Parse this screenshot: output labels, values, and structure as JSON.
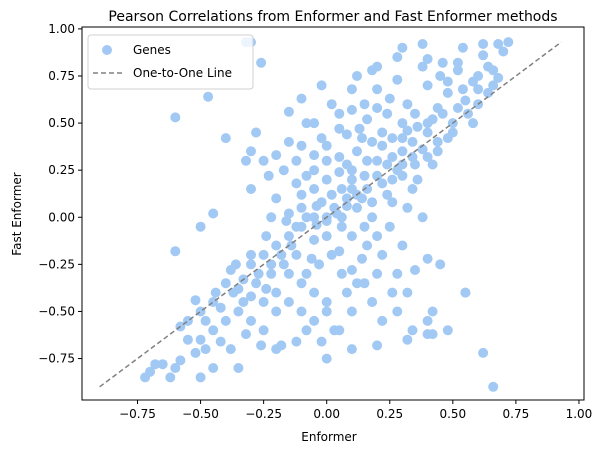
{
  "chart_data": {
    "type": "scatter",
    "title": "Pearson Correlations from Enformer and Fast Enformer methods",
    "xlabel": "Enformer",
    "ylabel": "Fast Enformer",
    "xlim": [
      -0.97,
      1.02
    ],
    "ylim": [
      -0.97,
      1.01
    ],
    "xticks": [
      -0.75,
      -0.5,
      -0.25,
      0.0,
      0.25,
      0.5,
      0.75,
      1.0
    ],
    "xtick_labels": [
      "−0.75",
      "−0.50",
      "−0.25",
      "0.00",
      "0.25",
      "0.50",
      "0.75",
      "1.00"
    ],
    "yticks": [
      -0.75,
      -0.5,
      -0.25,
      0.0,
      0.25,
      0.5,
      0.75,
      1.0
    ],
    "ytick_labels": [
      "−0.75",
      "−0.50",
      "−0.25",
      "0.00",
      "0.25",
      "0.50",
      "0.75",
      "1.00"
    ],
    "grid": false,
    "legend": {
      "placement": "top-left",
      "entries": [
        "Genes",
        "One-to-One Line"
      ]
    },
    "series": [
      {
        "name": "Genes",
        "kind": "scatter",
        "color": "#a1c9f4",
        "points": [
          [
            -0.3,
            0.93
          ],
          [
            -0.26,
            0.82
          ],
          [
            -0.47,
            0.64
          ],
          [
            -0.6,
            0.53
          ],
          [
            0.72,
            0.93
          ],
          [
            0.68,
            0.92
          ],
          [
            0.62,
            0.92
          ],
          [
            0.54,
            0.9
          ],
          [
            0.38,
            0.92
          ],
          [
            0.3,
            0.9
          ],
          [
            0.2,
            0.8
          ],
          [
            0.12,
            0.75
          ],
          [
            0.18,
            0.78
          ],
          [
            0.28,
            0.73
          ],
          [
            0.45,
            0.75
          ],
          [
            0.64,
            0.8
          ],
          [
            0.66,
            0.78
          ],
          [
            0.4,
            0.7
          ],
          [
            0.25,
            0.63
          ],
          [
            0.15,
            0.6
          ],
          [
            0.1,
            0.57
          ],
          [
            0.2,
            0.58
          ],
          [
            0.32,
            0.6
          ],
          [
            0.48,
            0.72
          ],
          [
            0.55,
            0.62
          ],
          [
            0.6,
            0.68
          ],
          [
            0.1,
            0.68
          ],
          [
            0.02,
            0.6
          ],
          [
            -0.1,
            0.63
          ],
          [
            -0.15,
            0.56
          ],
          [
            -0.05,
            0.5
          ],
          [
            0.05,
            0.47
          ],
          [
            0.13,
            0.47
          ],
          [
            0.16,
            0.52
          ],
          [
            0.22,
            0.45
          ],
          [
            0.3,
            0.5
          ],
          [
            0.35,
            0.55
          ],
          [
            0.42,
            0.52
          ],
          [
            0.5,
            0.5
          ],
          [
            0.58,
            0.5
          ],
          [
            0.4,
            0.45
          ],
          [
            -0.4,
            0.42
          ],
          [
            -0.3,
            0.35
          ],
          [
            -0.28,
            0.45
          ],
          [
            -0.32,
            0.3
          ],
          [
            -0.2,
            0.33
          ],
          [
            -0.12,
            0.3
          ],
          [
            -0.17,
            0.25
          ],
          [
            -0.05,
            0.33
          ],
          [
            0.0,
            0.38
          ],
          [
            0.05,
            0.32
          ],
          [
            0.08,
            0.28
          ],
          [
            0.12,
            0.35
          ],
          [
            0.18,
            0.4
          ],
          [
            0.22,
            0.38
          ],
          [
            0.26,
            0.32
          ],
          [
            0.3,
            0.42
          ],
          [
            0.34,
            0.4
          ],
          [
            0.38,
            0.36
          ],
          [
            0.28,
            0.25
          ],
          [
            0.2,
            0.3
          ],
          [
            0.15,
            0.22
          ],
          [
            0.1,
            0.2
          ],
          [
            0.05,
            0.24
          ],
          [
            0.0,
            0.2
          ],
          [
            -0.05,
            0.15
          ],
          [
            -0.08,
            0.22
          ],
          [
            -0.12,
            0.18
          ],
          [
            -0.2,
            0.1
          ],
          [
            -0.23,
            0.22
          ],
          [
            -0.3,
            0.15
          ],
          [
            -0.45,
            0.02
          ],
          [
            -0.5,
            -0.05
          ],
          [
            -0.22,
            0.0
          ],
          [
            -0.15,
            0.02
          ],
          [
            -0.1,
            0.05
          ],
          [
            -0.05,
            0.0
          ],
          [
            0.0,
            -0.02
          ],
          [
            0.03,
            0.05
          ],
          [
            0.08,
            0.1
          ],
          [
            0.12,
            0.12
          ],
          [
            0.16,
            0.15
          ],
          [
            0.22,
            0.18
          ],
          [
            0.26,
            0.2
          ],
          [
            0.3,
            0.22
          ],
          [
            0.35,
            0.28
          ],
          [
            0.4,
            0.32
          ],
          [
            0.44,
            0.35
          ],
          [
            0.34,
            0.15
          ],
          [
            0.32,
            0.05
          ],
          [
            0.38,
            0.0
          ],
          [
            0.26,
            0.08
          ],
          [
            0.18,
            0.0
          ],
          [
            0.15,
            -0.05
          ],
          [
            0.1,
            -0.1
          ],
          [
            0.06,
            -0.05
          ],
          [
            0.0,
            -0.1
          ],
          [
            -0.05,
            -0.12
          ],
          [
            -0.1,
            -0.05
          ],
          [
            -0.15,
            -0.1
          ],
          [
            -0.2,
            -0.15
          ],
          [
            -0.25,
            -0.2
          ],
          [
            -0.3,
            -0.25
          ],
          [
            -0.28,
            -0.35
          ],
          [
            -0.22,
            -0.3
          ],
          [
            -0.17,
            -0.25
          ],
          [
            -0.12,
            -0.2
          ],
          [
            -0.08,
            -0.3
          ],
          [
            -0.03,
            -0.25
          ],
          [
            0.02,
            -0.2
          ],
          [
            0.05,
            -0.18
          ],
          [
            0.1,
            -0.28
          ],
          [
            0.14,
            -0.22
          ],
          [
            0.2,
            -0.1
          ],
          [
            0.25,
            -0.05
          ],
          [
            0.3,
            -0.15
          ],
          [
            0.4,
            -0.22
          ],
          [
            0.45,
            -0.25
          ],
          [
            0.35,
            -0.28
          ],
          [
            0.2,
            -0.3
          ],
          [
            0.15,
            -0.35
          ],
          [
            0.08,
            -0.4
          ],
          [
            0.0,
            -0.45
          ],
          [
            -0.05,
            -0.4
          ],
          [
            -0.1,
            -0.35
          ],
          [
            -0.15,
            -0.3
          ],
          [
            -0.2,
            -0.4
          ],
          [
            -0.25,
            -0.45
          ],
          [
            -0.3,
            -0.42
          ],
          [
            -0.35,
            -0.38
          ],
          [
            -0.38,
            -0.28
          ],
          [
            -0.4,
            -0.35
          ],
          [
            -0.45,
            -0.45
          ],
          [
            -0.5,
            -0.5
          ],
          [
            -0.55,
            -0.55
          ],
          [
            -0.5,
            -0.65
          ],
          [
            -0.45,
            -0.6
          ],
          [
            -0.4,
            -0.55
          ],
          [
            -0.35,
            -0.5
          ],
          [
            -0.3,
            -0.55
          ],
          [
            -0.25,
            -0.6
          ],
          [
            -0.2,
            -0.5
          ],
          [
            -0.15,
            -0.45
          ],
          [
            -0.1,
            -0.5
          ],
          [
            -0.05,
            -0.55
          ],
          [
            0.0,
            -0.5
          ],
          [
            0.03,
            -0.6
          ],
          [
            0.1,
            -0.5
          ],
          [
            0.12,
            -0.35
          ],
          [
            0.18,
            -0.45
          ],
          [
            0.22,
            -0.55
          ],
          [
            0.26,
            -0.4
          ],
          [
            0.28,
            -0.5
          ],
          [
            0.34,
            -0.6
          ],
          [
            0.4,
            -0.55
          ],
          [
            0.42,
            -0.5
          ],
          [
            0.48,
            -0.6
          ],
          [
            0.55,
            -0.4
          ],
          [
            0.4,
            -0.62
          ],
          [
            0.32,
            -0.65
          ],
          [
            0.2,
            -0.68
          ],
          [
            0.1,
            -0.7
          ],
          [
            0.05,
            -0.6
          ],
          [
            0.0,
            -0.75
          ],
          [
            -0.02,
            -0.66
          ],
          [
            -0.08,
            -0.6
          ],
          [
            -0.12,
            -0.66
          ],
          [
            -0.18,
            -0.68
          ],
          [
            -0.26,
            -0.68
          ],
          [
            -0.32,
            -0.62
          ],
          [
            -0.38,
            -0.7
          ],
          [
            -0.42,
            -0.66
          ],
          [
            -0.48,
            -0.7
          ],
          [
            -0.52,
            -0.72
          ],
          [
            -0.58,
            -0.76
          ],
          [
            -0.6,
            -0.8
          ],
          [
            -0.65,
            -0.78
          ],
          [
            -0.7,
            -0.82
          ],
          [
            -0.72,
            -0.85
          ],
          [
            -0.68,
            -0.78
          ],
          [
            -0.62,
            -0.85
          ],
          [
            -0.5,
            -0.85
          ],
          [
            -0.45,
            -0.8
          ],
          [
            -0.35,
            -0.8
          ],
          [
            -0.2,
            -0.7
          ],
          [
            -0.55,
            -0.65
          ],
          [
            -0.58,
            -0.58
          ],
          [
            -0.48,
            -0.55
          ],
          [
            -0.42,
            -0.48
          ],
          [
            -0.33,
            -0.45
          ],
          [
            -0.6,
            -0.18
          ],
          [
            -0.32,
            0.93
          ],
          [
            0.38,
            0.8
          ],
          [
            0.28,
            0.85
          ],
          [
            0.2,
            0.68
          ],
          [
            0.6,
            0.75
          ],
          [
            0.7,
            0.88
          ],
          [
            0.52,
            0.78
          ],
          [
            0.62,
            0.86
          ],
          [
            0.48,
            0.66
          ],
          [
            0.44,
            0.58
          ],
          [
            0.36,
            0.48
          ],
          [
            0.24,
            0.55
          ],
          [
            -0.08,
            0.5
          ],
          [
            -0.02,
            0.42
          ],
          [
            0.08,
            0.44
          ],
          [
            0.14,
            0.42
          ],
          [
            0.3,
            0.28
          ],
          [
            0.44,
            0.4
          ],
          [
            0.5,
            0.45
          ],
          [
            0.56,
            0.55
          ],
          [
            0.6,
            0.6
          ],
          [
            0.66,
            0.7
          ],
          [
            0.05,
            0.55
          ],
          [
            -0.1,
            0.38
          ],
          [
            -0.05,
            0.25
          ],
          [
            0.02,
            0.12
          ],
          [
            -0.02,
            0.08
          ],
          [
            -0.08,
            0.0
          ],
          [
            -0.12,
            -0.05
          ],
          [
            -0.18,
            -0.2
          ],
          [
            -0.22,
            -0.25
          ],
          [
            -0.27,
            -0.3
          ],
          [
            -0.33,
            -0.33
          ],
          [
            -0.37,
            -0.4
          ],
          [
            -0.44,
            -0.4
          ],
          [
            -0.52,
            -0.44
          ],
          [
            0.06,
            0.0
          ],
          [
            0.12,
            0.05
          ],
          [
            0.18,
            0.08
          ],
          [
            0.24,
            0.12
          ],
          [
            0.3,
            0.35
          ],
          [
            0.36,
            0.2
          ],
          [
            0.42,
            0.28
          ],
          [
            0.48,
            0.42
          ],
          [
            0.0,
            0.3
          ],
          [
            -0.15,
            0.4
          ],
          [
            -0.25,
            0.3
          ],
          [
            -0.1,
            0.12
          ],
          [
            0.16,
            -0.15
          ],
          [
            0.22,
            -0.2
          ],
          [
            0.28,
            -0.3
          ],
          [
            0.32,
            -0.4
          ],
          [
            0.06,
            -0.3
          ],
          [
            -0.06,
            -0.22
          ],
          [
            -0.14,
            -0.15
          ],
          [
            -0.24,
            -0.1
          ],
          [
            -0.3,
            -0.2
          ],
          [
            -0.36,
            -0.25
          ],
          [
            -0.24,
            -0.38
          ],
          [
            0.0,
            0.0
          ],
          [
            0.04,
            0.02
          ],
          [
            -0.04,
            -0.04
          ],
          [
            0.08,
            0.06
          ],
          [
            0.1,
            0.15
          ],
          [
            0.14,
            0.1
          ],
          [
            0.2,
            0.22
          ],
          [
            0.24,
            0.28
          ],
          [
            0.34,
            0.32
          ],
          [
            -0.16,
            -0.02
          ],
          [
            -0.04,
            0.06
          ],
          [
            0.06,
            0.15
          ],
          [
            0.1,
            0.25
          ],
          [
            0.16,
            0.3
          ],
          [
            0.26,
            0.42
          ],
          [
            0.32,
            0.46
          ],
          [
            0.4,
            0.5
          ],
          [
            0.46,
            0.55
          ],
          [
            0.52,
            0.58
          ],
          [
            0.54,
            0.68
          ],
          [
            0.58,
            0.72
          ],
          [
            0.64,
            0.66
          ],
          [
            0.68,
            0.74
          ],
          [
            0.66,
            -0.9
          ],
          [
            0.62,
            -0.72
          ],
          [
            0.55,
            -0.4
          ],
          [
            0.42,
            -0.62
          ],
          [
            0.52,
            0.82
          ],
          [
            0.46,
            0.82
          ],
          [
            0.4,
            0.84
          ],
          [
            -0.02,
            0.7
          ]
        ]
      },
      {
        "name": "One-to-One Line",
        "kind": "line",
        "color": "#808080",
        "dash": "dashed",
        "x": [
          -0.9,
          0.93
        ],
        "y": [
          -0.9,
          0.93
        ]
      }
    ]
  }
}
